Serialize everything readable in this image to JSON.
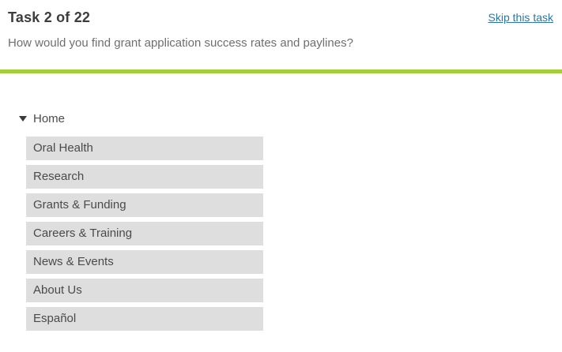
{
  "header": {
    "title": "Task 2 of 22",
    "skip_link_label": "Skip this task",
    "question": "How would you find grant application success rates and paylines?"
  },
  "colors": {
    "divider_green": "#a3cd3a",
    "link_blue": "#2e75a3",
    "item_background_gray": "#dedede",
    "title_text": "#3d3d3d",
    "question_text": "#6e6e6e",
    "item_text": "#4a4a4a"
  },
  "tree": {
    "root": {
      "label": "Home",
      "expanded": true,
      "icon": "triangle-down-icon"
    },
    "items": [
      {
        "label": "Oral Health"
      },
      {
        "label": "Research"
      },
      {
        "label": "Grants & Funding"
      },
      {
        "label": "Careers & Training"
      },
      {
        "label": "News & Events"
      },
      {
        "label": "About Us"
      },
      {
        "label": "Español"
      }
    ]
  }
}
